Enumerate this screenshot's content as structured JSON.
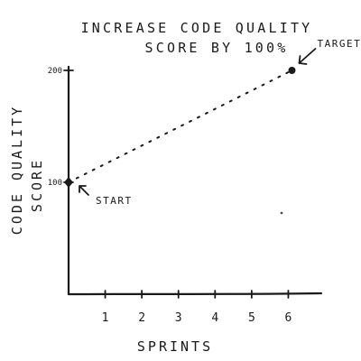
{
  "chart_data": {
    "type": "line",
    "title_lines": [
      "INCREASE CODE QUALITY",
      "SCORE BY 100%"
    ],
    "xlabel": "SPRINTS",
    "ylabel_lines": [
      "CODE QUALITY",
      "SCORE"
    ],
    "x_ticks": [
      1,
      2,
      3,
      4,
      5,
      6
    ],
    "y_ticks": [
      100,
      200
    ],
    "xlim": [
      0,
      7
    ],
    "ylim": [
      0,
      250
    ],
    "grid": false,
    "series": [
      {
        "style": "dotted",
        "points": [
          {
            "x": 0,
            "y": 100
          },
          {
            "x": 6.1,
            "y": 200
          }
        ]
      }
    ],
    "annotations": [
      {
        "text": "START",
        "x": 0,
        "y": 100
      },
      {
        "text": "TARGET",
        "x": 6.1,
        "y": 200
      }
    ]
  }
}
